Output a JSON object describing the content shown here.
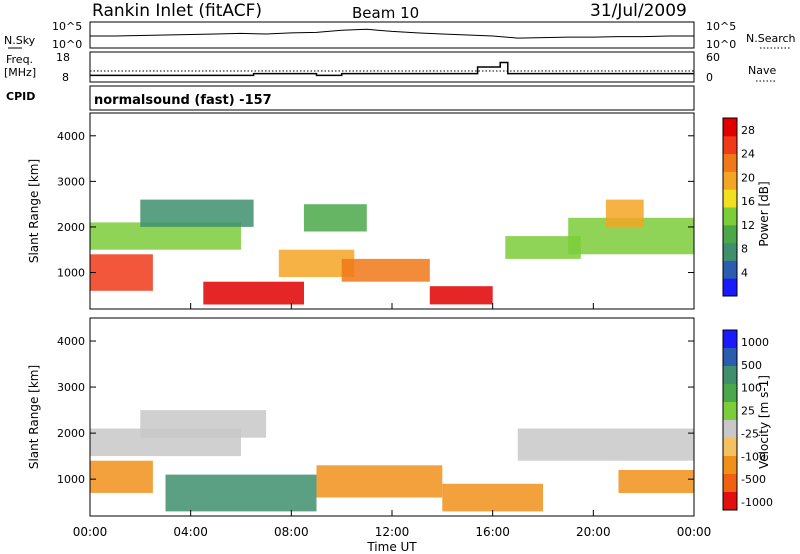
{
  "header": {
    "station": "Rankin Inlet (fitACF)",
    "beam": "Beam 10",
    "date": "31/Jul/2009"
  },
  "top_panels": {
    "nsky_label": "N.Sky",
    "nsearch_label": "N.Search",
    "noise_ticks": [
      "10^5",
      "10^0"
    ],
    "freq_label": "Freq.",
    "freq_unit": "[MHz]",
    "freq_ticks": [
      "18",
      "8"
    ],
    "nave_label": "Nave",
    "nave_ticks": [
      "60",
      "0"
    ],
    "cpid_label": "CPID",
    "cpid_text": "normalsound (fast) -157"
  },
  "colors": {
    "power": [
      "#1a1aff",
      "#2a5db0",
      "#3f8f6e",
      "#4aa84a",
      "#7ccd3a",
      "#f0e020",
      "#f5a524",
      "#f07818",
      "#f03a1a",
      "#e00000"
    ],
    "velocity": [
      "#1a1aff",
      "#2a5db0",
      "#3f8f6e",
      "#4aa84a",
      "#7ccd3a",
      "#c8c8c8",
      "#f5c060",
      "#f0901a",
      "#f06010",
      "#e01010"
    ]
  },
  "chart_data": [
    {
      "type": "line",
      "title": "N.Sky / N.Search",
      "ylim_labels": [
        "10^0",
        "10^5"
      ],
      "series": [
        {
          "name": "N.Sky",
          "x": [
            "00:00",
            "01:00",
            "02:00",
            "03:00",
            "04:00",
            "05:00",
            "06:00",
            "07:00",
            "08:00",
            "09:00",
            "10:00",
            "11:00",
            "12:00",
            "13:00",
            "14:00",
            "15:00",
            "16:00",
            "17:00",
            "18:00",
            "19:00",
            "20:00",
            "21:00",
            "22:00",
            "23:00",
            "24:00"
          ],
          "values": [
            2.3,
            2.3,
            2.4,
            2.5,
            2.6,
            2.7,
            2.8,
            2.7,
            2.9,
            3.0,
            3.4,
            3.6,
            3.2,
            2.9,
            2.7,
            2.5,
            2.3,
            1.9,
            2.0,
            2.1,
            2.1,
            2.2,
            2.2,
            2.3,
            2.3
          ]
        }
      ]
    },
    {
      "type": "line",
      "xlabel": "",
      "y_left": {
        "label": "Freq. [MHz]",
        "ylim": [
          8,
          18
        ]
      },
      "y_right": {
        "label": "Nave",
        "ylim": [
          0,
          60
        ]
      },
      "series": [
        {
          "name": "Freq.",
          "x": [
            0,
            6.5,
            6.5,
            9.0,
            9.0,
            10.0,
            10.0,
            15.4,
            15.4,
            16.3,
            16.3,
            16.6,
            16.6,
            24
          ],
          "values": [
            10.2,
            10.2,
            10.8,
            10.8,
            10.2,
            10.2,
            10.8,
            10.8,
            13.0,
            13.0,
            14.5,
            14.5,
            10.8,
            10.8
          ]
        },
        {
          "name": "Nave",
          "x": [
            0,
            24
          ],
          "values": [
            22,
            22
          ]
        }
      ]
    },
    {
      "type": "heatmap",
      "title": "Power",
      "xlabel": "Time UT",
      "ylabel": "Slant Range [km]",
      "x_ticks": [
        "00:00",
        "04:00",
        "08:00",
        "12:00",
        "16:00",
        "20:00",
        "00:00"
      ],
      "xlim_hours": [
        0,
        24
      ],
      "ylim": [
        200,
        4500
      ],
      "y_ticks": [
        1000,
        2000,
        3000,
        4000
      ],
      "colorbar": {
        "label": "Power [dB]",
        "ticks": [
          4,
          8,
          12,
          16,
          20,
          24,
          28
        ],
        "range": [
          0,
          30
        ]
      },
      "regions": [
        {
          "t0": 0,
          "t1": 2.5,
          "r0": 600,
          "r1": 1400,
          "value": 26
        },
        {
          "t0": 0,
          "t1": 6,
          "r0": 1500,
          "r1": 2100,
          "value": 14
        },
        {
          "t0": 2,
          "t1": 6.5,
          "r0": 2000,
          "r1": 2600,
          "value": 6
        },
        {
          "t0": 4.5,
          "t1": 8.5,
          "r0": 300,
          "r1": 800,
          "value": 27
        },
        {
          "t0": 7.5,
          "t1": 10.5,
          "r0": 900,
          "r1": 1500,
          "value": 18
        },
        {
          "t0": 8.5,
          "t1": 11,
          "r0": 1900,
          "r1": 2500,
          "value": 10
        },
        {
          "t0": 10,
          "t1": 13.5,
          "r0": 800,
          "r1": 1300,
          "value": 22
        },
        {
          "t0": 13.5,
          "t1": 16,
          "r0": 300,
          "r1": 700,
          "value": 28
        },
        {
          "t0": 16.5,
          "t1": 19.5,
          "r0": 1300,
          "r1": 1800,
          "value": 12
        },
        {
          "t0": 19,
          "t1": 24,
          "r0": 1400,
          "r1": 2200,
          "value": 14
        },
        {
          "t0": 20.5,
          "t1": 22,
          "r0": 2000,
          "r1": 2600,
          "value": 20
        }
      ]
    },
    {
      "type": "heatmap",
      "title": "Velocity",
      "xlabel": "Time UT",
      "ylabel": "Slant Range [km]",
      "x_ticks": [
        "00:00",
        "04:00",
        "08:00",
        "12:00",
        "16:00",
        "20:00",
        "00:00"
      ],
      "xlim_hours": [
        0,
        24
      ],
      "ylim": [
        200,
        4500
      ],
      "y_ticks": [
        1000,
        2000,
        3000,
        4000
      ],
      "colorbar": {
        "label": "Velocity [m s-1]",
        "ticks": [
          1000,
          500,
          100,
          25,
          -25,
          -100,
          -500,
          -1000
        ]
      },
      "regions": [
        {
          "t0": 0,
          "t1": 2.5,
          "r0": 700,
          "r1": 1400,
          "value": -200
        },
        {
          "t0": 0,
          "t1": 6,
          "r0": 1500,
          "r1": 2100,
          "value": 0
        },
        {
          "t0": 2,
          "t1": 7,
          "r0": 1900,
          "r1": 2500,
          "value": 0
        },
        {
          "t0": 3,
          "t1": 9,
          "r0": 300,
          "r1": 1100,
          "value": 300
        },
        {
          "t0": 9,
          "t1": 14,
          "r0": 600,
          "r1": 1300,
          "value": -300
        },
        {
          "t0": 14,
          "t1": 18,
          "r0": 300,
          "r1": 900,
          "value": -300
        },
        {
          "t0": 17,
          "t1": 24,
          "r0": 1400,
          "r1": 2100,
          "value": 0
        },
        {
          "t0": 21,
          "t1": 24,
          "r0": 700,
          "r1": 1200,
          "value": -250
        }
      ]
    }
  ]
}
